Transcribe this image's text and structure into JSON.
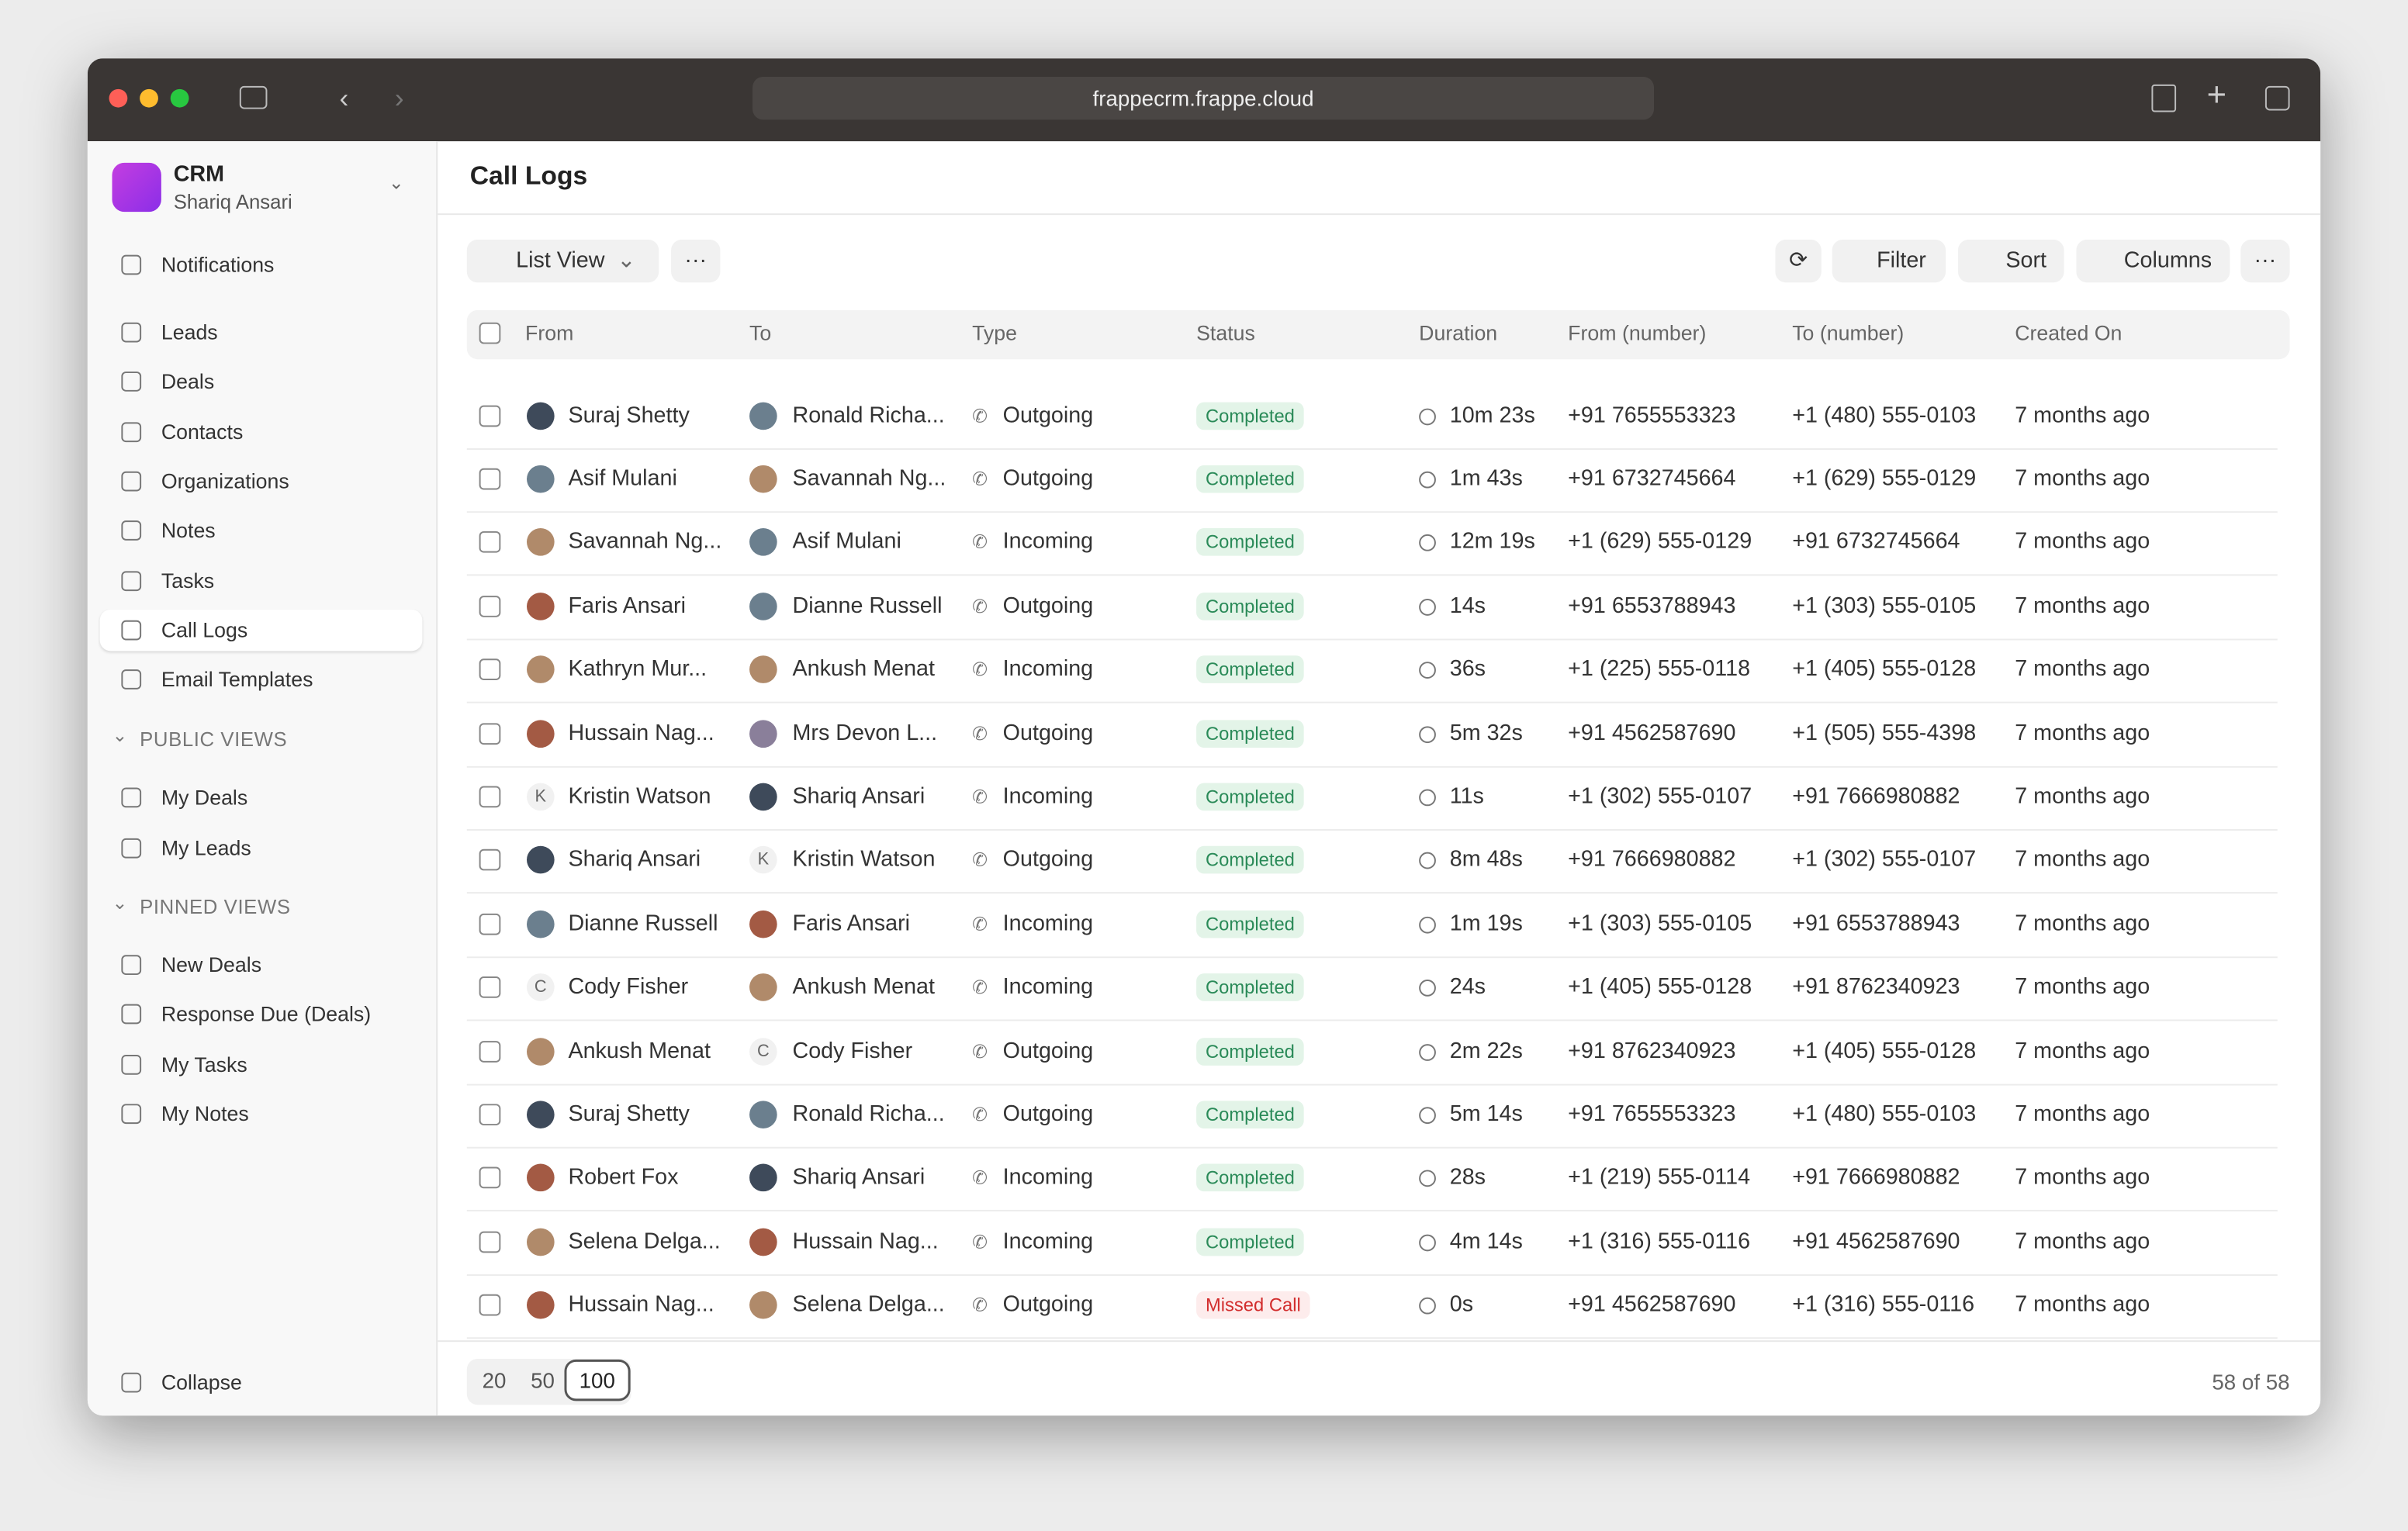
{
  "browser": {
    "url": "frappecrm.frappe.cloud"
  },
  "sidebar": {
    "app": "CRM",
    "user": "Shariq Ansari",
    "top": [
      "Notifications"
    ],
    "nav": [
      "Leads",
      "Deals",
      "Contacts",
      "Organizations",
      "Notes",
      "Tasks",
      "Call Logs",
      "Email Templates"
    ],
    "active": 6,
    "public_title": "PUBLIC VIEWS",
    "public_views": [
      "My Deals",
      "My Leads"
    ],
    "pinned_title": "PINNED VIEWS",
    "pinned_views": [
      "New Deals",
      "Response Due (Deals)",
      "My Tasks",
      "My Notes"
    ],
    "collapse": "Collapse"
  },
  "header": {
    "title": "Call Logs"
  },
  "toolbar": {
    "view": "List View",
    "filter": "Filter",
    "sort": "Sort",
    "columns": "Columns"
  },
  "table": {
    "columns": [
      "From",
      "To",
      "Type",
      "Status",
      "Duration",
      "From (number)",
      "To (number)",
      "Created On"
    ],
    "rows": [
      {
        "from": "Suraj Shetty",
        "to": "Ronald Richa...",
        "type": "Outgoing",
        "status": "Completed",
        "status_color": "green",
        "duration": "10m 23s",
        "from_number": "+91 7655553323",
        "to_number": "+1 (480) 555-0103",
        "created": "7 months ago"
      },
      {
        "from": "Asif Mulani",
        "to": "Savannah Ng...",
        "type": "Outgoing",
        "status": "Completed",
        "status_color": "green",
        "duration": "1m 43s",
        "from_number": "+91 6732745664",
        "to_number": "+1 (629) 555-0129",
        "created": "7 months ago"
      },
      {
        "from": "Savannah Ng...",
        "to": "Asif Mulani",
        "type": "Incoming",
        "status": "Completed",
        "status_color": "green",
        "duration": "12m 19s",
        "from_number": "+1 (629) 555-0129",
        "to_number": "+91 6732745664",
        "created": "7 months ago"
      },
      {
        "from": "Faris Ansari",
        "to": "Dianne Russell",
        "type": "Outgoing",
        "status": "Completed",
        "status_color": "green",
        "duration": "14s",
        "from_number": "+91 6553788943",
        "to_number": "+1 (303) 555-0105",
        "created": "7 months ago"
      },
      {
        "from": "Kathryn Mur...",
        "to": "Ankush Menat",
        "type": "Incoming",
        "status": "Completed",
        "status_color": "green",
        "duration": "36s",
        "from_number": "+1 (225) 555-0118",
        "to_number": "+1 (405) 555-0128",
        "created": "7 months ago"
      },
      {
        "from": "Hussain Nag...",
        "to": "Mrs Devon L...",
        "type": "Outgoing",
        "status": "Completed",
        "status_color": "green",
        "duration": "5m 32s",
        "from_number": "+91 4562587690",
        "to_number": "+1 (505) 555-4398",
        "created": "7 months ago"
      },
      {
        "from": "Kristin Watson",
        "from_initial": "K",
        "to": "Shariq Ansari",
        "type": "Incoming",
        "status": "Completed",
        "status_color": "green",
        "duration": "11s",
        "from_number": "+1 (302) 555-0107",
        "to_number": "+91 7666980882",
        "created": "7 months ago"
      },
      {
        "from": "Shariq Ansari",
        "to": "Kristin Watson",
        "to_initial": "K",
        "type": "Outgoing",
        "status": "Completed",
        "status_color": "green",
        "duration": "8m 48s",
        "from_number": "+91 7666980882",
        "to_number": "+1 (302) 555-0107",
        "created": "7 months ago"
      },
      {
        "from": "Dianne Russell",
        "to": "Faris Ansari",
        "type": "Incoming",
        "status": "Completed",
        "status_color": "green",
        "duration": "1m 19s",
        "from_number": "+1 (303) 555-0105",
        "to_number": "+91 6553788943",
        "created": "7 months ago"
      },
      {
        "from": "Cody Fisher",
        "from_initial": "C",
        "to": "Ankush Menat",
        "type": "Incoming",
        "status": "Completed",
        "status_color": "green",
        "duration": "24s",
        "from_number": "+1 (405) 555-0128",
        "to_number": "+91 8762340923",
        "created": "7 months ago"
      },
      {
        "from": "Ankush Menat",
        "to": "Cody Fisher",
        "to_initial": "C",
        "type": "Outgoing",
        "status": "Completed",
        "status_color": "green",
        "duration": "2m 22s",
        "from_number": "+91 8762340923",
        "to_number": "+1 (405) 555-0128",
        "created": "7 months ago"
      },
      {
        "from": "Suraj Shetty",
        "to": "Ronald Richa...",
        "type": "Outgoing",
        "status": "Completed",
        "status_color": "green",
        "duration": "5m 14s",
        "from_number": "+91 7655553323",
        "to_number": "+1 (480) 555-0103",
        "created": "7 months ago"
      },
      {
        "from": "Robert Fox",
        "to": "Shariq Ansari",
        "type": "Incoming",
        "status": "Completed",
        "status_color": "green",
        "duration": "28s",
        "from_number": "+1 (219) 555-0114",
        "to_number": "+91 7666980882",
        "created": "7 months ago"
      },
      {
        "from": "Selena Delga...",
        "to": "Hussain Nag...",
        "type": "Incoming",
        "status": "Completed",
        "status_color": "green",
        "duration": "4m 14s",
        "from_number": "+1 (316) 555-0116",
        "to_number": "+91 4562587690",
        "created": "7 months ago"
      },
      {
        "from": "Hussain Nag...",
        "to": "Selena Delga...",
        "type": "Outgoing",
        "status": "Missed Call",
        "status_color": "red",
        "duration": "0s",
        "from_number": "+91 4562587690",
        "to_number": "+1 (316) 555-0116",
        "created": "7 months ago"
      }
    ]
  },
  "footer": {
    "page_sizes": [
      "20",
      "50",
      "100"
    ],
    "selected": 2,
    "count": "58 of 58"
  }
}
